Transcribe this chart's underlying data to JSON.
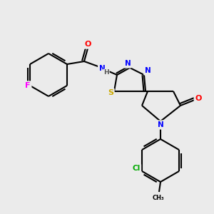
{
  "background_color": "#ebebeb",
  "atom_colors": {
    "N": "#0000ff",
    "O": "#ff0000",
    "S": "#ccaa00",
    "F": "#ff00ff",
    "Cl": "#00aa00",
    "C": "#000000",
    "H": "#555555"
  },
  "bond_color": "#000000",
  "bond_width": 1.5,
  "fig_width": 3.0,
  "fig_height": 3.0,
  "dpi": 100
}
